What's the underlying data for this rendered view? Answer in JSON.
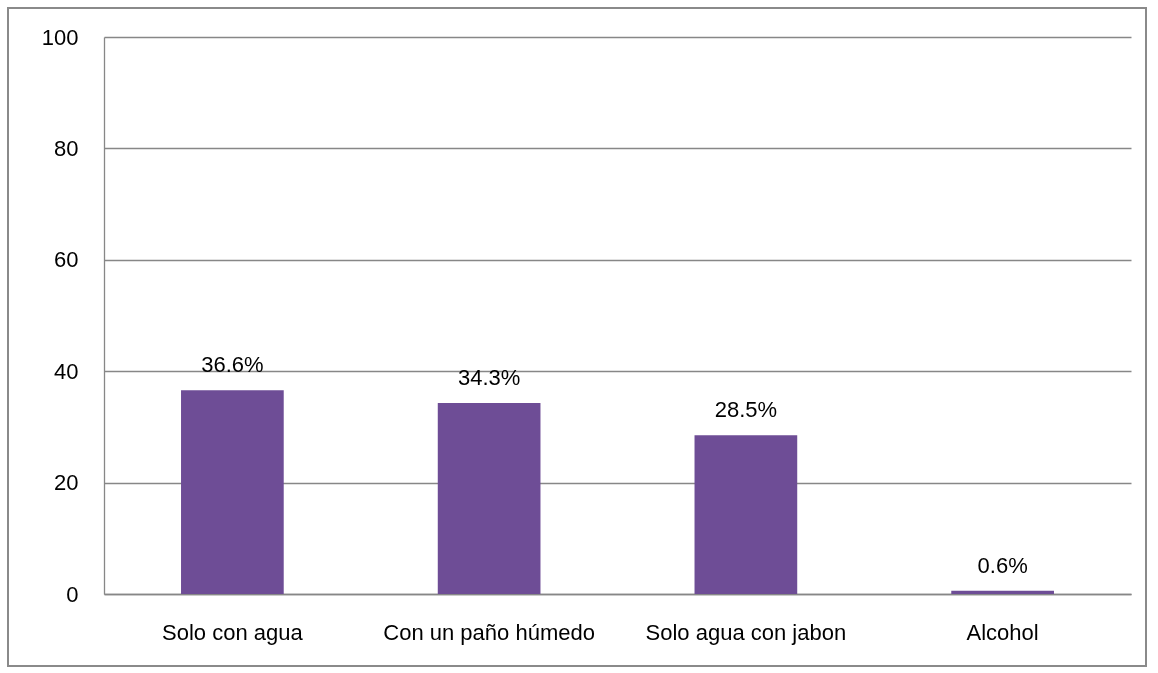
{
  "chart_data": {
    "type": "bar",
    "categories": [
      "Solo con agua",
      "Con un paño húmedo",
      "Solo agua con jabon",
      "Alcohol"
    ],
    "values": [
      36.6,
      34.3,
      28.5,
      0.6
    ],
    "value_labels": [
      "36.6%",
      "34.3%",
      "28.5%",
      "0.6%"
    ],
    "color": "#6e4d96",
    "ylim": [
      0,
      100
    ],
    "yticks": [
      0,
      20,
      40,
      60,
      80,
      100
    ],
    "grid": "y"
  }
}
